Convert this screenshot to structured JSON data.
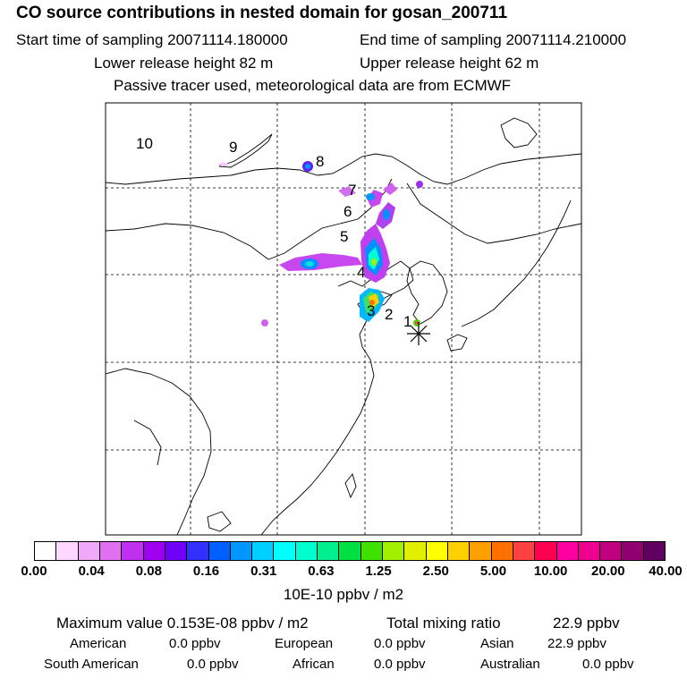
{
  "header": {
    "title": "CO  source contributions in nested domain for gosan_200711",
    "start_label": "Start time of sampling 20071114.180000",
    "end_label": "End time of sampling 20071114.210000",
    "lower_height": "Lower release height   82 m",
    "upper_height": "Upper release height   62 m",
    "tracer_note": "Passive tracer used, meteorological data are from ECMWF"
  },
  "map": {
    "point_labels": [
      "1",
      "2",
      "3",
      "4",
      "5",
      "6",
      "7",
      "8",
      "9",
      "10"
    ],
    "receptor_icon": "asterisk-icon"
  },
  "colorbar": {
    "ticks": [
      "0.00",
      "0.04",
      "0.08",
      "0.16",
      "0.31",
      "0.63",
      "1.25",
      "2.50",
      "5.00",
      "10.00",
      "20.00",
      "40.00"
    ],
    "colors": [
      "#ffffff",
      "#ffd8ff",
      "#f0a8f8",
      "#e070f0",
      "#c030f0",
      "#a000f0",
      "#7000f8",
      "#3030ff",
      "#0060ff",
      "#0098ff",
      "#00d0ff",
      "#00ffff",
      "#00ffd0",
      "#00f090",
      "#00e040",
      "#40e000",
      "#a0f000",
      "#e0f000",
      "#ffff00",
      "#ffd000",
      "#ffa000",
      "#ff7000",
      "#ff4040",
      "#ff0050",
      "#ff00a0",
      "#f00090",
      "#c00080",
      "#900070",
      "#600060"
    ],
    "unit": "10E-10 ppbv / m2"
  },
  "stats": {
    "max_value": "Maximum value  0.153E-08 ppbv / m2",
    "total_label": "Total mixing ratio",
    "total_value": "22.9 ppbv"
  },
  "regions": [
    {
      "name": "American",
      "value": "0.0 ppbv"
    },
    {
      "name": "European",
      "value": "0.0 ppbv"
    },
    {
      "name": "Asian",
      "value": "22.9 ppbv"
    },
    {
      "name": "South American",
      "value": "0.0 ppbv"
    },
    {
      "name": "African",
      "value": "0.0 ppbv"
    },
    {
      "name": "Australian",
      "value": "0.0 ppbv"
    }
  ]
}
